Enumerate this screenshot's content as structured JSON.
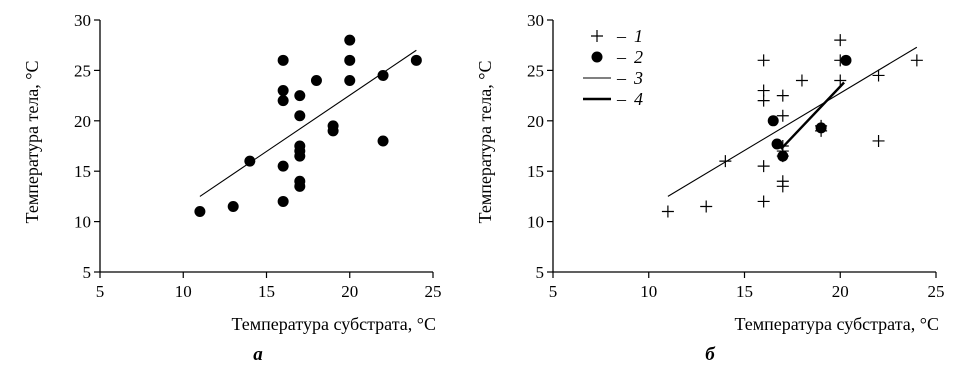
{
  "chart_data": [
    {
      "type": "scatter",
      "panel_label": "a",
      "xlabel": "Температура субстрата, °C",
      "ylabel": "Температура тела, °C",
      "xlim": [
        5,
        25
      ],
      "ylim": [
        5,
        30
      ],
      "x_ticks": [
        "5",
        "10",
        "15",
        "20",
        "25"
      ],
      "y_ticks": [
        "5",
        "10",
        "15",
        "20",
        "25",
        "30"
      ],
      "grid": false,
      "series": [
        {
          "marker": "dot",
          "points": [
            [
              11,
              11
            ],
            [
              13,
              11.5
            ],
            [
              14,
              16
            ],
            [
              16,
              26
            ],
            [
              16,
              23
            ],
            [
              16,
              22
            ],
            [
              16,
              15.5
            ],
            [
              16,
              12
            ],
            [
              17,
              22.5
            ],
            [
              17,
              20.5
            ],
            [
              17,
              17.5
            ],
            [
              17,
              17
            ],
            [
              17,
              16.5
            ],
            [
              17,
              14
            ],
            [
              17,
              13.5
            ],
            [
              18,
              24
            ],
            [
              19,
              19.5
            ],
            [
              19,
              19
            ],
            [
              20,
              28
            ],
            [
              20,
              26
            ],
            [
              20,
              24
            ],
            [
              22,
              24.5
            ],
            [
              22,
              18
            ],
            [
              24,
              26
            ]
          ]
        },
        {
          "marker": "line",
          "points": [
            [
              11,
              12.5
            ],
            [
              24,
              27
            ]
          ]
        }
      ]
    },
    {
      "type": "scatter",
      "panel_label": "б",
      "xlabel": "Температура субстрата, °C",
      "ylabel": "Температура тела, °C",
      "xlim": [
        5,
        25
      ],
      "ylim": [
        5,
        30
      ],
      "x_ticks": [
        "5",
        "10",
        "15",
        "20",
        "25"
      ],
      "y_ticks": [
        "5",
        "10",
        "15",
        "20",
        "25",
        "30"
      ],
      "grid": false,
      "legend_position": "top-left",
      "legend": [
        {
          "marker": "plus",
          "dash": "–",
          "label": "1"
        },
        {
          "marker": "dot",
          "dash": "–",
          "label": "2"
        },
        {
          "marker": "thin-line",
          "dash": "–",
          "label": "3"
        },
        {
          "marker": "thick-line",
          "dash": "–",
          "label": "4"
        }
      ],
      "series": [
        {
          "name": "1",
          "marker": "plus",
          "points": [
            [
              11,
              11
            ],
            [
              13,
              11.5
            ],
            [
              14,
              16
            ],
            [
              16,
              26
            ],
            [
              16,
              23
            ],
            [
              16,
              22
            ],
            [
              16,
              15.5
            ],
            [
              16,
              12
            ],
            [
              17,
              22.5
            ],
            [
              17,
              20.5
            ],
            [
              17,
              17.5
            ],
            [
              17,
              17
            ],
            [
              17,
              16.5
            ],
            [
              17,
              14
            ],
            [
              17,
              13.5
            ],
            [
              18,
              24
            ],
            [
              19,
              19.5
            ],
            [
              19,
              19
            ],
            [
              20,
              28
            ],
            [
              20,
              26
            ],
            [
              20,
              24
            ],
            [
              22,
              24.5
            ],
            [
              22,
              18
            ],
            [
              24,
              26
            ]
          ]
        },
        {
          "name": "2",
          "marker": "dot",
          "points": [
            [
              16.5,
              20
            ],
            [
              16.7,
              17.7
            ],
            [
              17,
              16.5
            ],
            [
              19,
              19.3
            ],
            [
              20.3,
              26
            ]
          ]
        },
        {
          "name": "3",
          "marker": "thin-line",
          "points": [
            [
              11,
              12.5
            ],
            [
              24,
              27.3
            ]
          ]
        },
        {
          "name": "4",
          "marker": "thick-line",
          "points": [
            [
              16.9,
              17.2
            ],
            [
              20.2,
              23.8
            ]
          ]
        }
      ]
    }
  ]
}
